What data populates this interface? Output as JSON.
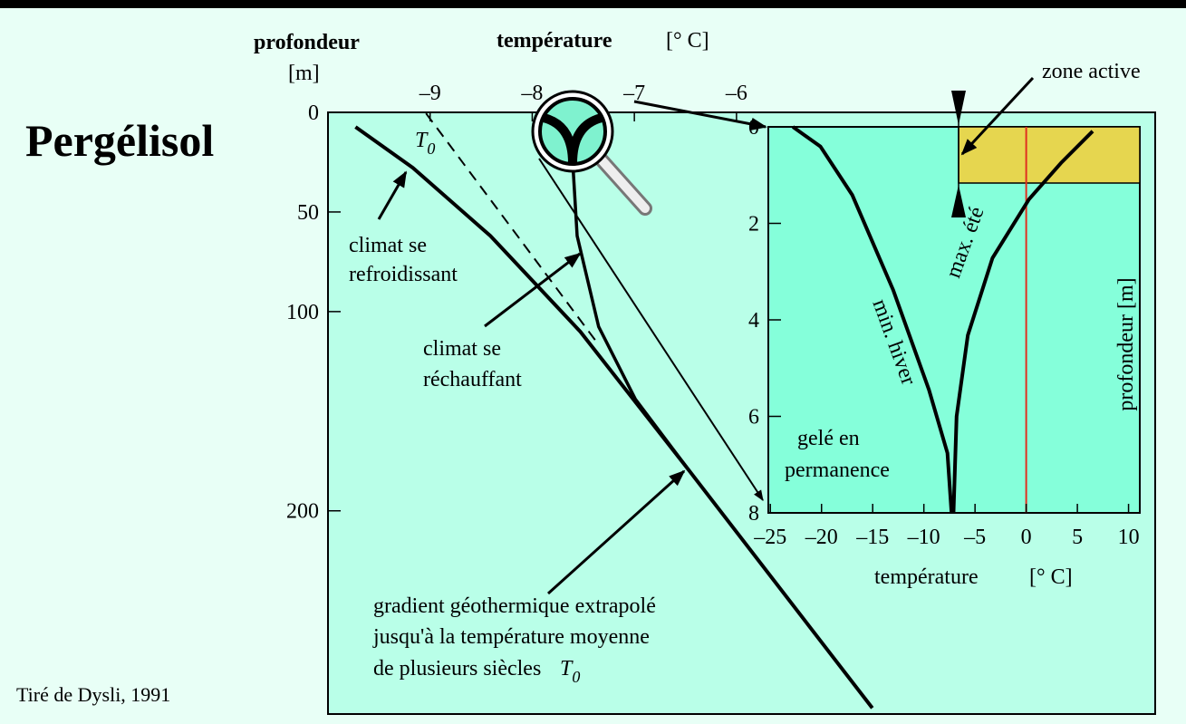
{
  "title": "Pergélisol",
  "source": "Tiré de Dysli, 1991",
  "t0_label": {
    "text": "T",
    "sub": "0"
  },
  "chart_data": [
    {
      "type": "line",
      "x_label": "température",
      "x_unit": "[° C]",
      "y_label": "profondeur",
      "y_unit": "[m]",
      "xlim": [
        -10,
        -1.9
      ],
      "ylim": [
        0,
        302
      ],
      "xticks": [
        {
          "value": -9,
          "label": "–9"
        },
        {
          "value": -8,
          "label": "–8"
        },
        {
          "value": -7,
          "label": "–7"
        },
        {
          "value": -6,
          "label": "–6"
        }
      ],
      "yticks": [
        0,
        50,
        100,
        200
      ],
      "background": "#b9ffe8",
      "series": [
        {
          "color": "#000000",
          "dash": false,
          "width": 4,
          "x": [
            -9.73,
            -9.17,
            -8.41,
            -7.53,
            -6.46,
            -4.67
          ],
          "y": [
            7.3,
            27.8,
            62,
            110,
            180,
            299
          ]
        },
        {
          "color": "#000000",
          "dash": true,
          "width": 2,
          "x": [
            -9.04,
            -7.35
          ],
          "y": [
            0.5,
            116.6
          ]
        },
        {
          "color": "#000000",
          "dash": false,
          "width": 3.5,
          "x": [
            -7.6,
            -7.56,
            -7.35,
            -6.99,
            -6.46
          ],
          "y": [
            27.8,
            62,
            107.5,
            144,
            180
          ]
        }
      ],
      "annotations": {
        "cooling": [
          "climat se",
          "refroidissant"
        ],
        "warming": [
          "climat se",
          "réchauffant"
        ],
        "gradient": [
          "gradient géothermique extrapolé",
          "jusqu'à la température moyenne",
          "de plusieurs siècles"
        ]
      }
    },
    {
      "type": "line",
      "x_label": "température",
      "x_unit": "[° C]",
      "y_label": "profondeur  [m]",
      "xlim": [
        -25.2,
        11.1
      ],
      "ylim": [
        0,
        8
      ],
      "xticks": [
        {
          "value": -25,
          "label": "–25"
        },
        {
          "value": -20,
          "label": "–20"
        },
        {
          "value": -15,
          "label": "–15"
        },
        {
          "value": -10,
          "label": "–10"
        },
        {
          "value": -5,
          "label": "–5"
        },
        0,
        5,
        10
      ],
      "yticks": [
        0,
        2,
        4,
        6,
        8
      ],
      "background": "#85ffda",
      "ref_line_x": 0,
      "ref_color": "#e03020",
      "series": [
        {
          "label": "min. hiver",
          "color": "#000000",
          "width": 4,
          "x": [
            -22.8,
            -20.1,
            -17.0,
            -13.0,
            -9.5,
            -7.7,
            -7.3
          ],
          "y": [
            0,
            0.41,
            1.41,
            3.38,
            5.45,
            6.76,
            8
          ]
        },
        {
          "label": "max. été",
          "color": "#000000",
          "width": 4,
          "x": [
            6.5,
            3.4,
            0.27,
            -3.3,
            -5.7,
            -6.8,
            -7.1
          ],
          "y": [
            0.09,
            0.75,
            1.5,
            2.72,
            4.32,
            6.0,
            8
          ]
        }
      ],
      "annotations": {
        "active": "zone active",
        "frozen": [
          "gelé en",
          "permanence"
        ]
      }
    }
  ]
}
